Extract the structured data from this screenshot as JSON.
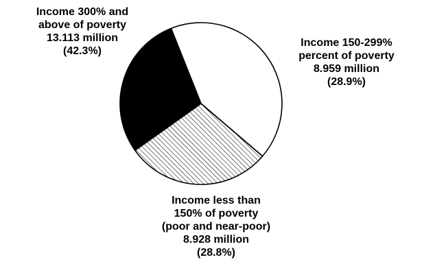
{
  "chart_data": {
    "type": "pie",
    "slices": [
      {
        "label_lines": [
          "Income 300% and",
          "above of poverty"
        ],
        "value": 13.113,
        "value_text": "13.113 million",
        "percent": 42.3,
        "percent_text": "(42.3%)",
        "fill": "white"
      },
      {
        "label_lines": [
          "Income 150-299%",
          "percent of poverty"
        ],
        "value": 8.959,
        "value_text": "8.959 million",
        "percent": 28.9,
        "percent_text": "(28.9%)",
        "fill": "hatched"
      },
      {
        "label_lines": [
          "Income less than",
          "150% of poverty",
          "(poor and near-poor)"
        ],
        "value": 8.928,
        "value_text": "8.928 million",
        "percent": 28.8,
        "percent_text": "(28.8%)",
        "fill": "black"
      }
    ],
    "colors": {
      "outline": "#000000",
      "solid": "#000000",
      "background": "#ffffff"
    }
  }
}
